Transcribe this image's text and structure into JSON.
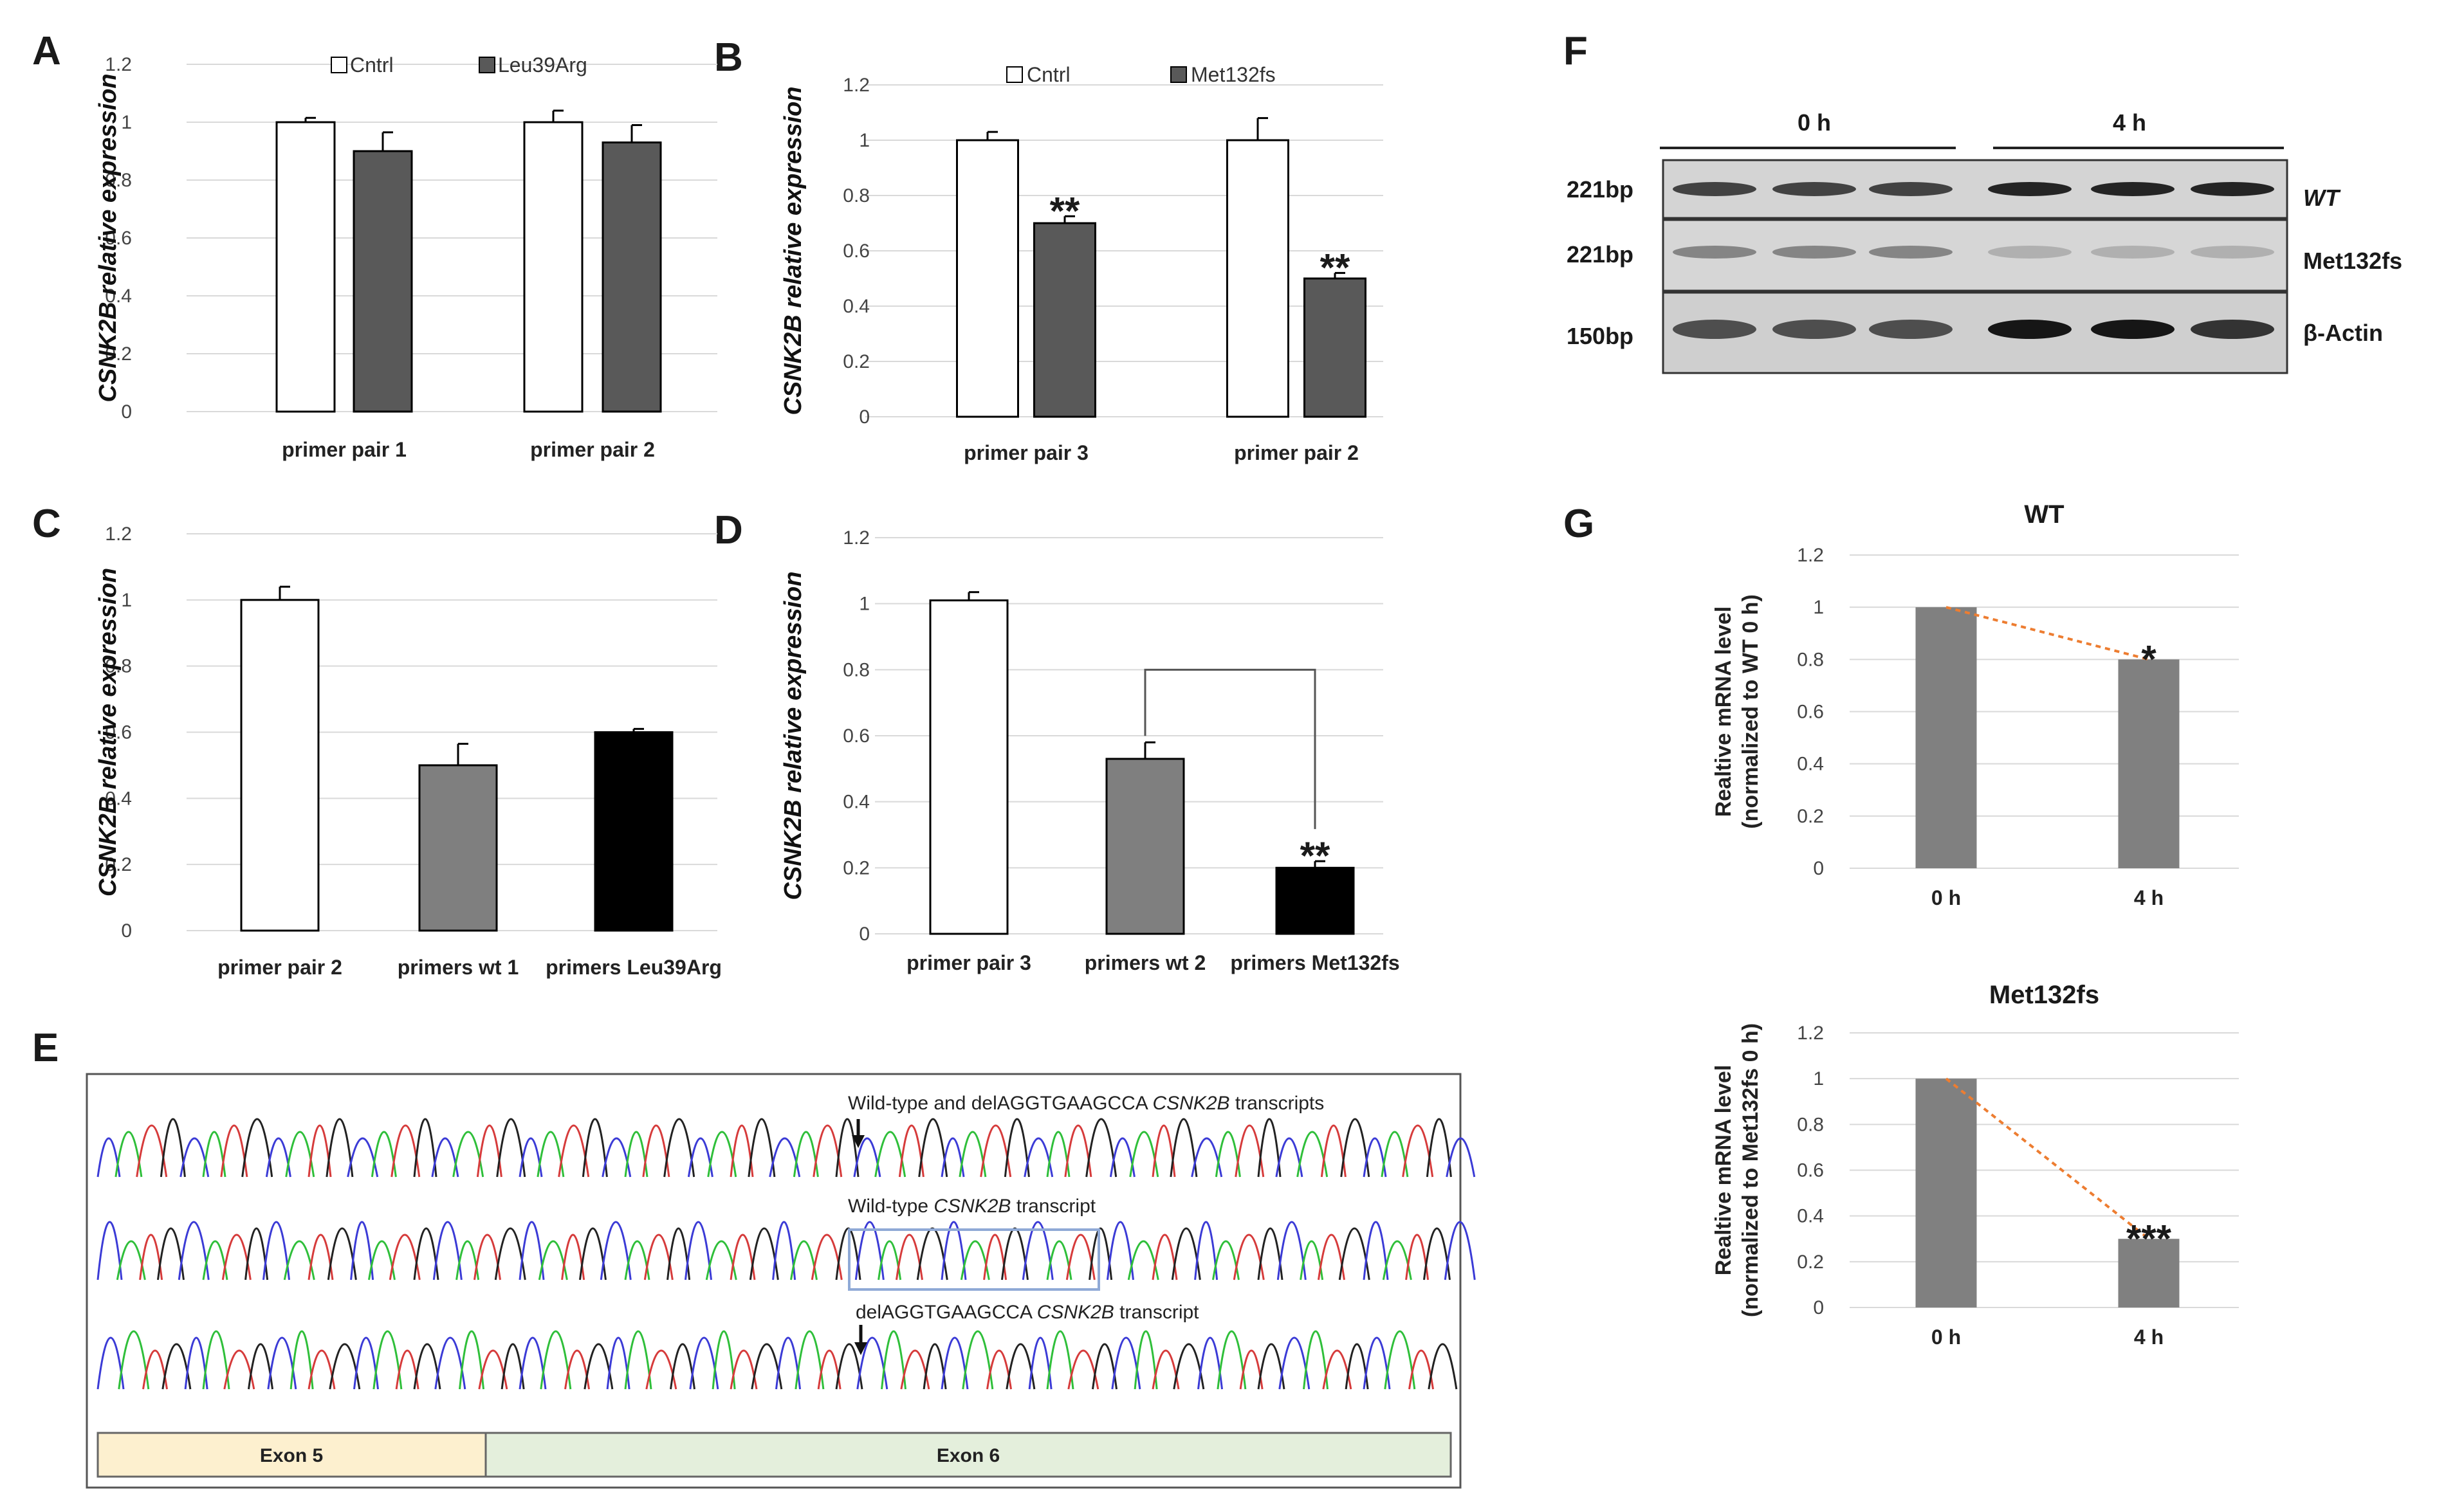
{
  "panel_labels": {
    "A": "A",
    "B": "B",
    "C": "C",
    "D": "D",
    "E": "E",
    "F": "F",
    "G": "G"
  },
  "colors": {
    "white_bar": "#ffffff",
    "dark_bar": "#595959",
    "gray_bar": "#7f7f7f",
    "black_bar": "#000000",
    "g_bar": "#808080",
    "trend": "#ed7d31",
    "blue_box": "#8fa9d6",
    "exon5": "#fdf0cf",
    "exon6": "#e4efdc"
  },
  "chart_data": [
    {
      "id": "A",
      "type": "bar",
      "ylabel": "CSNK2B relative expression",
      "ylim": [
        0,
        1.2
      ],
      "yticks": [
        "0",
        "0.2",
        "0.4",
        "0.6",
        "0.8",
        "1",
        "1.2"
      ],
      "categories": [
        "primer pair 1",
        "primer pair 2"
      ],
      "series": [
        {
          "name": "Cntrl",
          "values": [
            1.0,
            1.0
          ],
          "errors": [
            0.015,
            0.04
          ],
          "color": "#ffffff"
        },
        {
          "name": "Leu39Arg",
          "values": [
            0.9,
            0.93
          ],
          "errors": [
            0.065,
            0.06
          ],
          "color": "#595959"
        }
      ],
      "annotations": []
    },
    {
      "id": "B",
      "type": "bar",
      "ylabel": "CSNK2B relative expression",
      "ylim": [
        0,
        1.2
      ],
      "yticks": [
        "0",
        "0.2",
        "0.4",
        "0.6",
        "0.8",
        "1",
        "1.2"
      ],
      "categories": [
        "primer pair 3",
        "primer pair 2"
      ],
      "series": [
        {
          "name": "Cntrl",
          "values": [
            1.0,
            1.0
          ],
          "errors": [
            0.03,
            0.08
          ],
          "color": "#ffffff"
        },
        {
          "name": "Met132fs",
          "values": [
            0.7,
            0.5
          ],
          "errors": [
            0.025,
            0.02
          ],
          "color": "#595959"
        }
      ],
      "annotations": [
        {
          "text": "**",
          "category": 0,
          "series": 1
        },
        {
          "text": "**",
          "category": 1,
          "series": 1
        }
      ]
    },
    {
      "id": "C",
      "type": "bar",
      "ylabel": "CSNK2B relative expression",
      "ylim": [
        0,
        1.2
      ],
      "yticks": [
        "0",
        "0.2",
        "0.4",
        "0.6",
        "0.8",
        "1",
        "1.2"
      ],
      "categories": [
        "primer pair 2",
        "primers wt 1",
        "primers Leu39Arg"
      ],
      "series": [
        {
          "name": "",
          "values": [
            1.0,
            0.5,
            0.6
          ],
          "errors": [
            0.04,
            0.065,
            0.01
          ],
          "colors": [
            "#ffffff",
            "#7f7f7f",
            "#000000"
          ]
        }
      ],
      "annotations": []
    },
    {
      "id": "D",
      "type": "bar",
      "ylabel": "CSNK2B relative expression",
      "ylim": [
        0,
        1.2
      ],
      "yticks": [
        "0",
        "0.2",
        "0.4",
        "0.6",
        "0.8",
        "1",
        "1.2"
      ],
      "categories": [
        "primer pair 3",
        "primers wt 2",
        "primers Met132fs"
      ],
      "series": [
        {
          "name": "",
          "values": [
            1.01,
            0.53,
            0.2
          ],
          "errors": [
            0.025,
            0.05,
            0.02
          ],
          "colors": [
            "#ffffff",
            "#7f7f7f",
            "#000000"
          ]
        }
      ],
      "annotations": [
        {
          "text": "**",
          "category": 2,
          "series": 0
        }
      ],
      "bracket": {
        "from": 1,
        "to": 2
      }
    },
    {
      "id": "G1",
      "type": "bar",
      "title": "WT",
      "ylabel_line1": "Realtive mRNA level",
      "ylabel_line2": "(normalized to WT  0 h)",
      "ylim": [
        0,
        1.2
      ],
      "yticks": [
        "0",
        "0.2",
        "0.4",
        "0.6",
        "0.8",
        "1",
        "1.2"
      ],
      "categories": [
        "0 h",
        "4 h"
      ],
      "values": [
        1.0,
        0.8
      ],
      "color": "#808080",
      "annotations": [
        {
          "text": "*",
          "category": 1
        }
      ],
      "trendline": true
    },
    {
      "id": "G2",
      "type": "bar",
      "title": "Met132fs",
      "ylabel_line1": "Realtive mRNA level",
      "ylabel_line2": "(normalized to Met132fs 0 h)",
      "ylim": [
        0,
        1.2
      ],
      "yticks": [
        "0",
        "0.2",
        "0.4",
        "0.6",
        "0.8",
        "1",
        "1.2"
      ],
      "categories": [
        "0 h",
        "4 h"
      ],
      "values": [
        1.0,
        0.3
      ],
      "color": "#808080",
      "annotations": [
        {
          "text": "***",
          "category": 1
        }
      ],
      "trendline": true
    }
  ],
  "gel": {
    "timepoints": [
      "0 h",
      "4 h"
    ],
    "rows": [
      {
        "size": "221bp",
        "name": "WT"
      },
      {
        "size": "221bp",
        "name": "Met132fs"
      },
      {
        "size": "150bp",
        "name": "β-Actin"
      }
    ]
  },
  "sequencing": {
    "traces": [
      {
        "label_pre": "Wild-type and delAGGTGAAGCCA ",
        "label_gene": "CSNK2B",
        "label_post": " transcripts"
      },
      {
        "label_pre": "Wild-type ",
        "label_gene": "CSNK2B",
        "label_post": " transcript"
      },
      {
        "label_pre": "delAGGTGAAGCCA ",
        "label_gene": "CSNK2B",
        "label_post": " transcript"
      }
    ],
    "exons": [
      "Exon 5",
      "Exon 6"
    ]
  }
}
